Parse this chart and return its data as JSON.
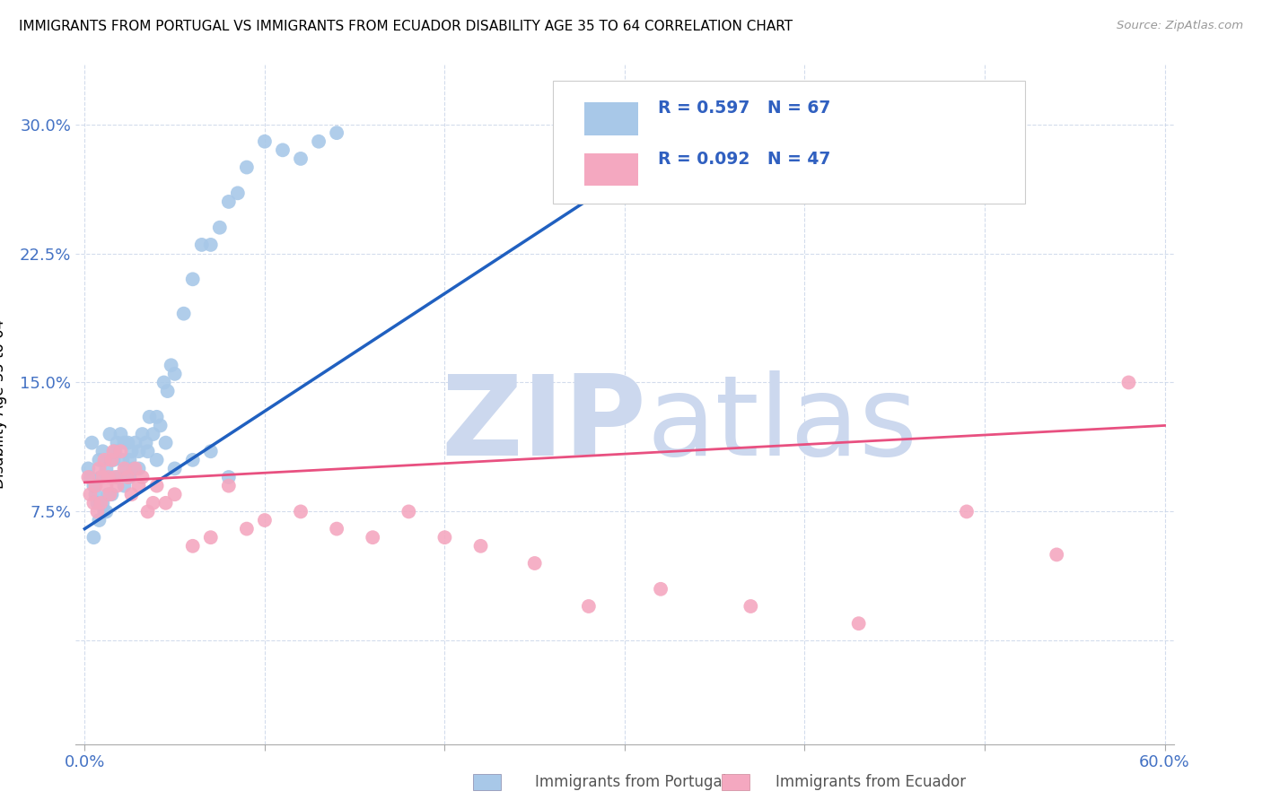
{
  "title": "IMMIGRANTS FROM PORTUGAL VS IMMIGRANTS FROM ECUADOR DISABILITY AGE 35 TO 64 CORRELATION CHART",
  "source": "Source: ZipAtlas.com",
  "ylabel": "Disability Age 35 to 64",
  "color_portugal": "#a8c8e8",
  "color_ecuador": "#f4a8c0",
  "color_line_portugal": "#2060c0",
  "color_line_ecuador": "#e85080",
  "watermark_zip": "ZIP",
  "watermark_atlas": "atlas",
  "watermark_color": "#ccd8ee",
  "xlim": [
    0.0,
    0.6
  ],
  "ylim": [
    -0.06,
    0.335
  ],
  "yticks": [
    0.0,
    0.075,
    0.15,
    0.225,
    0.3
  ],
  "ytick_labels": [
    "",
    "7.5%",
    "15.0%",
    "22.5%",
    "30.0%"
  ],
  "xticks": [
    0.0,
    0.1,
    0.2,
    0.3,
    0.4,
    0.5,
    0.6
  ],
  "portugal_x": [
    0.002,
    0.003,
    0.004,
    0.005,
    0.006,
    0.007,
    0.008,
    0.009,
    0.01,
    0.011,
    0.012,
    0.013,
    0.014,
    0.015,
    0.016,
    0.017,
    0.018,
    0.019,
    0.02,
    0.021,
    0.022,
    0.023,
    0.024,
    0.025,
    0.026,
    0.027,
    0.028,
    0.03,
    0.032,
    0.034,
    0.036,
    0.038,
    0.04,
    0.042,
    0.044,
    0.046,
    0.048,
    0.05,
    0.055,
    0.06,
    0.065,
    0.07,
    0.075,
    0.08,
    0.085,
    0.09,
    0.1,
    0.11,
    0.12,
    0.13,
    0.14,
    0.005,
    0.008,
    0.01,
    0.012,
    0.015,
    0.018,
    0.022,
    0.025,
    0.03,
    0.035,
    0.04,
    0.045,
    0.05,
    0.06,
    0.07,
    0.08
  ],
  "portugal_y": [
    0.1,
    0.095,
    0.115,
    0.09,
    0.085,
    0.08,
    0.105,
    0.095,
    0.11,
    0.075,
    0.1,
    0.085,
    0.12,
    0.095,
    0.105,
    0.11,
    0.115,
    0.095,
    0.12,
    0.105,
    0.115,
    0.1,
    0.115,
    0.105,
    0.11,
    0.1,
    0.115,
    0.11,
    0.12,
    0.115,
    0.13,
    0.12,
    0.13,
    0.125,
    0.15,
    0.145,
    0.16,
    0.155,
    0.19,
    0.21,
    0.23,
    0.23,
    0.24,
    0.255,
    0.26,
    0.275,
    0.29,
    0.285,
    0.28,
    0.29,
    0.295,
    0.06,
    0.07,
    0.08,
    0.075,
    0.085,
    0.095,
    0.09,
    0.095,
    0.1,
    0.11,
    0.105,
    0.115,
    0.1,
    0.105,
    0.11,
    0.095
  ],
  "ecuador_x": [
    0.002,
    0.003,
    0.005,
    0.006,
    0.007,
    0.008,
    0.009,
    0.01,
    0.011,
    0.012,
    0.013,
    0.014,
    0.015,
    0.016,
    0.017,
    0.018,
    0.02,
    0.022,
    0.024,
    0.026,
    0.028,
    0.03,
    0.032,
    0.035,
    0.038,
    0.04,
    0.045,
    0.05,
    0.06,
    0.07,
    0.08,
    0.09,
    0.1,
    0.12,
    0.14,
    0.16,
    0.18,
    0.2,
    0.22,
    0.25,
    0.28,
    0.32,
    0.37,
    0.43,
    0.49,
    0.54,
    0.58
  ],
  "ecuador_y": [
    0.095,
    0.085,
    0.08,
    0.09,
    0.075,
    0.1,
    0.08,
    0.095,
    0.105,
    0.09,
    0.095,
    0.085,
    0.105,
    0.11,
    0.095,
    0.09,
    0.11,
    0.1,
    0.095,
    0.085,
    0.1,
    0.09,
    0.095,
    0.075,
    0.08,
    0.09,
    0.08,
    0.085,
    0.055,
    0.06,
    0.09,
    0.065,
    0.07,
    0.075,
    0.065,
    0.06,
    0.075,
    0.06,
    0.055,
    0.045,
    0.02,
    0.03,
    0.02,
    0.01,
    0.075,
    0.05,
    0.15
  ],
  "trend_port_x0": 0.0,
  "trend_port_x1": 0.3,
  "trend_port_y0": 0.065,
  "trend_port_y1": 0.27,
  "trend_ecua_x0": 0.0,
  "trend_ecua_x1": 0.6,
  "trend_ecua_y0": 0.092,
  "trend_ecua_y1": 0.125
}
